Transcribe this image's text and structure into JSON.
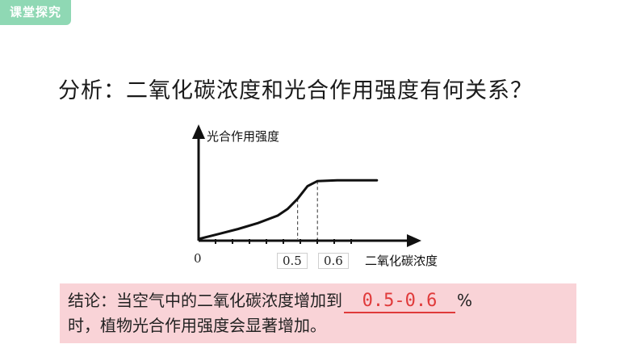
{
  "header": {
    "tag": "课堂探究",
    "tag_color": "#8fd8b4"
  },
  "question": "分析：二氧化碳浓度和光合作用强度有何关系？",
  "chart_data": {
    "type": "line",
    "ylabel": "光合作用强度",
    "xlabel": "二氧化碳浓度",
    "origin_label": "0",
    "tick_labels": [
      "0.5",
      "0.6"
    ],
    "x": [
      0,
      0.1,
      0.2,
      0.3,
      0.4,
      0.45,
      0.5,
      0.55,
      0.6,
      0.7,
      0.8,
      0.9
    ],
    "y": [
      0,
      0.06,
      0.12,
      0.19,
      0.28,
      0.36,
      0.48,
      0.63,
      0.69,
      0.7,
      0.7,
      0.7
    ],
    "xlim": [
      0,
      1.05
    ],
    "ylim": [
      0,
      1
    ],
    "markers": [
      0.5,
      0.6
    ]
  },
  "conclusion": {
    "prefix": "结论：当空气中的二氧化碳浓度增加到",
    "blank": "0.5-0.6",
    "suffix": "%",
    "line2": "时，植物光合作用强度会显著增加。",
    "background": "#f9d3d7",
    "accent": "#e03a3a"
  }
}
